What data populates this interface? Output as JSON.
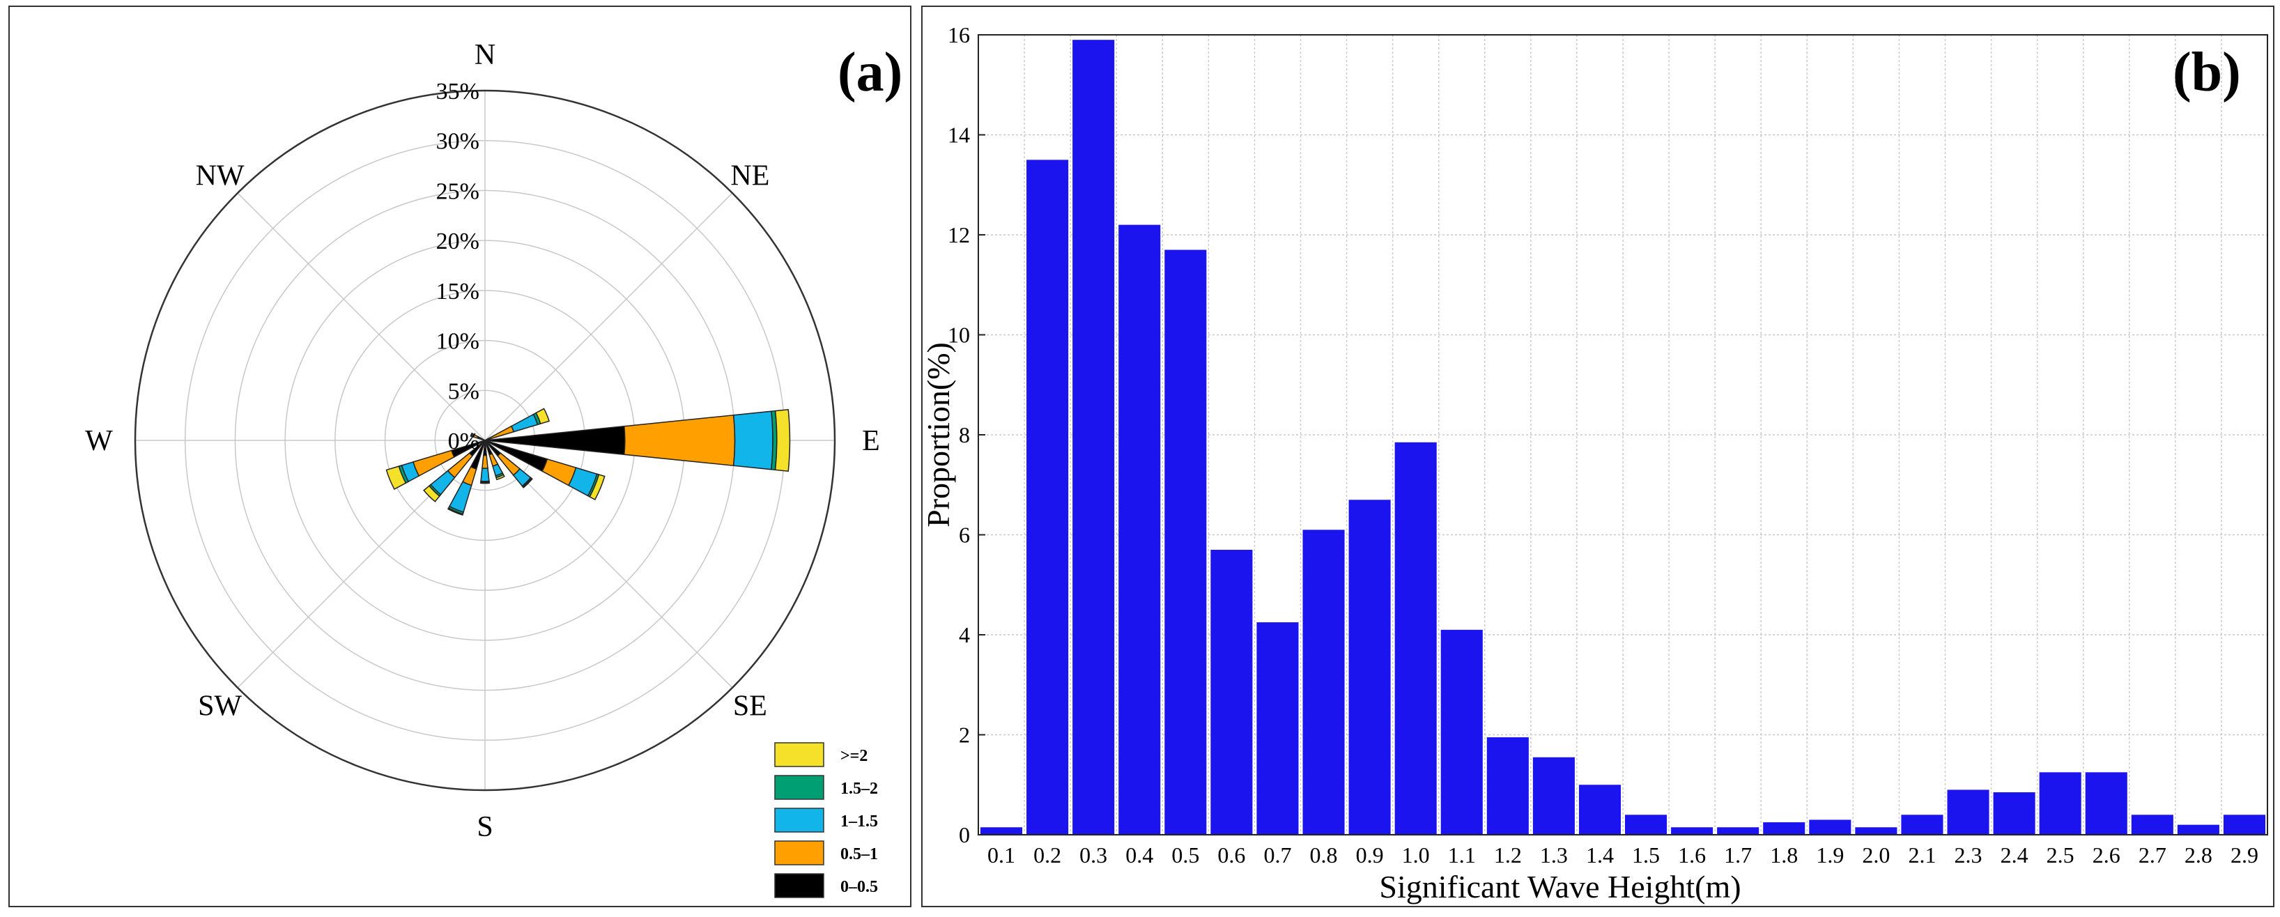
{
  "rose": {
    "panel_label": "(a)",
    "type": "polar-stacked-bar",
    "directions": [
      "N",
      "NE",
      "E",
      "SE",
      "S",
      "SW",
      "W",
      "NW"
    ],
    "radial_ticks": [
      "0%",
      "5%",
      "10%",
      "15%",
      "20%",
      "25%",
      "30%",
      "35%"
    ],
    "radial_max": 35,
    "legend": [
      {
        "label": ">=2",
        "color": "#f5e12a"
      },
      {
        "label": "1.5–2",
        "color": "#009e73"
      },
      {
        "label": "1–1.5",
        "color": "#12b5ea"
      },
      {
        "label": "0.5–1",
        "color": "#ff9f00"
      },
      {
        "label": "0–0.5",
        "color": "#000000"
      }
    ],
    "petals": [
      {
        "dir_deg": 67.5,
        "segments": [
          0.3,
          2.7,
          2.5,
          0.3,
          0.9
        ]
      },
      {
        "dir_deg": 90,
        "segments": [
          14.0,
          11.0,
          3.8,
          0.4,
          1.3
        ]
      },
      {
        "dir_deg": 112.5,
        "segments": [
          6.5,
          3.0,
          2.2,
          0.2,
          0.6
        ]
      },
      {
        "dir_deg": 135,
        "segments": [
          2.0,
          2.5,
          1.4,
          0.1,
          0.1
        ]
      },
      {
        "dir_deg": 157.5,
        "segments": [
          1.5,
          1.2,
          1.0,
          0.2,
          0.2
        ]
      },
      {
        "dir_deg": 180,
        "segments": [
          1.5,
          1.3,
          1.3,
          0.1,
          0.1
        ]
      },
      {
        "dir_deg": 202.5,
        "segments": [
          3.0,
          1.7,
          2.8,
          0.2,
          0.1
        ]
      },
      {
        "dir_deg": 225,
        "segments": [
          2.0,
          2.8,
          2.2,
          0.2,
          0.7
        ]
      },
      {
        "dir_deg": 247.5,
        "segments": [
          3.5,
          4.0,
          1.2,
          0.3,
          1.3
        ]
      },
      {
        "dir_deg": 292.5,
        "segments": [
          0.8,
          0.4,
          0.2,
          0.0,
          0.1
        ]
      }
    ]
  },
  "chart_data": {
    "type": "bar",
    "panel_label": "(b)",
    "title": "",
    "xlabel": "Significant Wave Height(m)",
    "ylabel": "Proportion(%)",
    "ylim": [
      0,
      16
    ],
    "yticks": [
      "0",
      "2",
      "4",
      "6",
      "8",
      "10",
      "12",
      "14",
      "16"
    ],
    "bar_color": "#1b14ee",
    "grid": true,
    "categories": [
      "0.1",
      "0.2",
      "0.3",
      "0.4",
      "0.5",
      "0.6",
      "0.7",
      "0.8",
      "0.9",
      "1.0",
      "1.1",
      "1.2",
      "1.3",
      "1.4",
      "1.5",
      "1.6",
      "1.7",
      "1.8",
      "1.9",
      "2.0",
      "2.1",
      "2.3",
      "2.4",
      "2.5",
      "2.6",
      "2.7",
      "2.8",
      "2.9"
    ],
    "values": [
      0.15,
      13.5,
      15.9,
      12.2,
      11.7,
      5.7,
      4.25,
      6.1,
      6.7,
      7.85,
      4.1,
      1.95,
      1.55,
      1.0,
      0.4,
      0.15,
      0.15,
      0.25,
      0.3,
      0.15,
      0.4,
      0.9,
      0.85,
      1.25,
      1.25,
      0.4,
      0.2,
      0.4
    ]
  }
}
